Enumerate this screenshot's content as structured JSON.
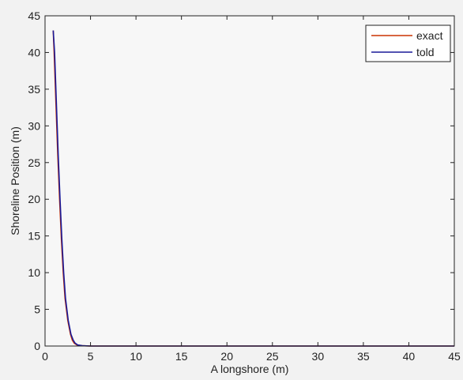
{
  "chart_data": {
    "type": "line",
    "title": "",
    "xlabel": "A longshore (m)",
    "ylabel": "Shoreline Position (m)",
    "xlim": [
      0,
      45
    ],
    "ylim": [
      0,
      45
    ],
    "xticks": [
      0,
      5,
      10,
      15,
      20,
      25,
      30,
      35,
      40,
      45
    ],
    "yticks": [
      0,
      5,
      10,
      15,
      20,
      25,
      30,
      35,
      40,
      45
    ],
    "grid": false,
    "legend_position": "top-right",
    "series": [
      {
        "name": "exact",
        "color": "#cc3300",
        "x": [
          0.9,
          1.0,
          1.2,
          1.4,
          1.6,
          1.8,
          2.0,
          2.2,
          2.5,
          2.8,
          3.0,
          3.2,
          3.5,
          4.0,
          5.0,
          10,
          20,
          30,
          40,
          45
        ],
        "y": [
          43,
          40,
          33,
          26,
          20,
          14.5,
          10,
          6.5,
          3.5,
          1.6,
          0.8,
          0.4,
          0.15,
          0.05,
          0,
          0,
          0,
          0,
          0,
          0
        ]
      },
      {
        "name": "told",
        "color": "#1a1a99",
        "x": [
          0.9,
          1.05,
          1.25,
          1.45,
          1.65,
          1.85,
          2.05,
          2.25,
          2.55,
          2.85,
          3.1,
          3.3,
          3.6,
          4.1,
          5.0,
          10,
          20,
          30,
          40,
          45
        ],
        "y": [
          43,
          40,
          33,
          26,
          20,
          14.5,
          10,
          6.5,
          3.5,
          1.6,
          0.8,
          0.4,
          0.15,
          0.05,
          0,
          0,
          0,
          0,
          0,
          0
        ]
      }
    ]
  }
}
